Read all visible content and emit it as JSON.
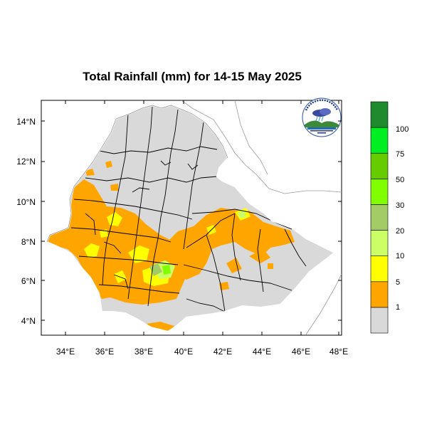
{
  "map": {
    "title": "Total Rainfall (mm) for 14-15 May 2025",
    "longitude_ticks": [
      "34°E",
      "36°E",
      "38°E",
      "40°E",
      "42°E",
      "44°E",
      "46°E",
      "48°E"
    ],
    "latitude_ticks": [
      "14°N",
      "12°N",
      "10°N",
      "8°N",
      "6°N",
      "4°N"
    ],
    "extent": {
      "lon_min": 33,
      "lon_max": 48.2,
      "lat_min": 3.2,
      "lat_max": 15
    },
    "land_color": "#d9d9d9",
    "boundary_color": "#000000"
  },
  "legend": {
    "bins": [
      {
        "label": "1",
        "color": "#d9d9d9"
      },
      {
        "label": "5",
        "color": "#ffa500"
      },
      {
        "label": "10",
        "color": "#ffff00"
      },
      {
        "label": "20",
        "color": "#ccff66"
      },
      {
        "label": "30",
        "color": "#a3cc66"
      },
      {
        "label": "50",
        "color": "#80ff00"
      },
      {
        "label": "75",
        "color": "#66cc00"
      },
      {
        "label": "100",
        "color": "#00ee22"
      },
      {
        "label": "",
        "color": "#1f8a2e"
      }
    ]
  },
  "logo": {
    "icon": "ethiopian-meteorology-institute-logo"
  }
}
